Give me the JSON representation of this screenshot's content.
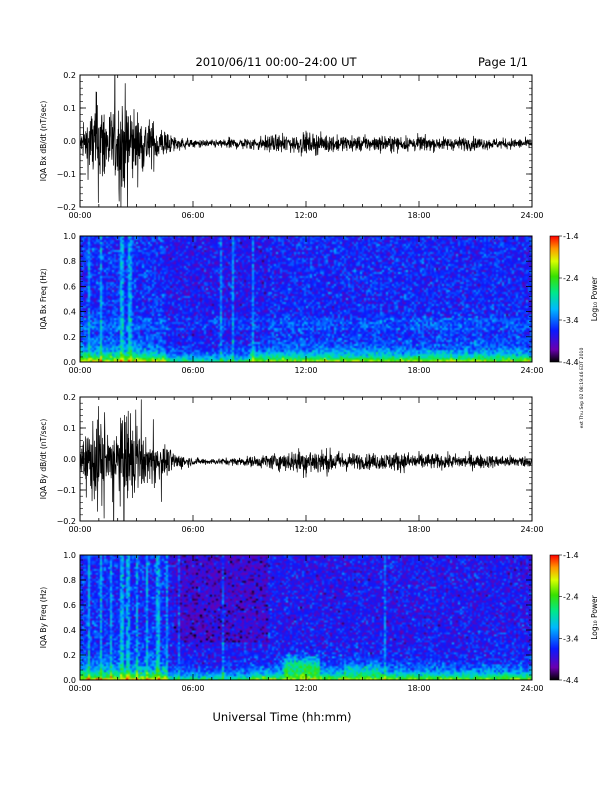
{
  "header": {
    "title": "2010/06/11  00:00–24:00 UT",
    "page": "Page 1/1"
  },
  "footer": {
    "xlabel": "Universal Time (hh:mm)",
    "side_stamp": "ext Thu Sep 02 08:19:46 EDT 2010"
  },
  "colorbar": {
    "label": "Log₁₀ Power",
    "ticks": [
      "-1.4",
      "-2.4",
      "-3.4",
      "-4.4"
    ]
  },
  "time_ticks": [
    "00:00",
    "06:00",
    "12:00",
    "18:00",
    "24:00"
  ],
  "chart_data": [
    {
      "type": "line",
      "ylabel": "IQA Bx dB/dt (nT/sec)",
      "xlim": [
        0,
        24
      ],
      "ylim": [
        -0.2,
        0.2
      ],
      "yticks": [
        "0.2",
        "0.1",
        "0.0",
        "−0.1",
        "−0.2"
      ],
      "envelope": {
        "hour": [
          0,
          0.5,
          1,
          1.5,
          2,
          2.5,
          3,
          3.5,
          4,
          5,
          6,
          7,
          8,
          9,
          10,
          11,
          12,
          13,
          14,
          15,
          16,
          17,
          18,
          19,
          20,
          21,
          22,
          23,
          24
        ],
        "amplitude": [
          0.03,
          0.12,
          0.2,
          0.13,
          0.15,
          0.2,
          0.12,
          0.1,
          0.08,
          0.03,
          0.015,
          0.015,
          0.02,
          0.025,
          0.03,
          0.035,
          0.04,
          0.035,
          0.03,
          0.03,
          0.03,
          0.03,
          0.03,
          0.025,
          0.025,
          0.025,
          0.02,
          0.02,
          0.02
        ]
      }
    },
    {
      "type": "heatmap",
      "ylabel": "IQA Bx Freq (Hz)",
      "xlim": [
        0,
        24
      ],
      "ylim": [
        0,
        1.0
      ],
      "yticks": [
        "1.0",
        "0.8",
        "0.6",
        "0.4",
        "0.2",
        "0.0"
      ],
      "zlim": [
        -4.4,
        -1.4
      ],
      "zlabel": "Log₁₀ Power"
    },
    {
      "type": "line",
      "ylabel": "IQA By dB/dt (nT/sec)",
      "xlim": [
        0,
        24
      ],
      "ylim": [
        -0.2,
        0.2
      ],
      "yticks": [
        "0.2",
        "0.1",
        "0.0",
        "−0.1",
        "−0.2"
      ],
      "envelope": {
        "hour": [
          0,
          0.5,
          1,
          1.5,
          2,
          2.5,
          3,
          3.5,
          4,
          5,
          6,
          7,
          8,
          9,
          10,
          11,
          12,
          13,
          14,
          15,
          16,
          17,
          18,
          19,
          20,
          21,
          22,
          23,
          24
        ],
        "amplitude": [
          0.04,
          0.15,
          0.2,
          0.12,
          0.15,
          0.2,
          0.12,
          0.09,
          0.08,
          0.04,
          0.015,
          0.012,
          0.015,
          0.02,
          0.03,
          0.04,
          0.06,
          0.05,
          0.04,
          0.03,
          0.035,
          0.04,
          0.035,
          0.03,
          0.03,
          0.03,
          0.025,
          0.025,
          0.02
        ]
      }
    },
    {
      "type": "heatmap",
      "ylabel": "IQA By Freq (Hz)",
      "xlim": [
        0,
        24
      ],
      "ylim": [
        0,
        1.0
      ],
      "yticks": [
        "1.0",
        "0.8",
        "0.6",
        "0.4",
        "0.2",
        "0.0"
      ],
      "zlim": [
        -4.4,
        -1.4
      ],
      "zlabel": "Log₁₀ Power"
    }
  ]
}
